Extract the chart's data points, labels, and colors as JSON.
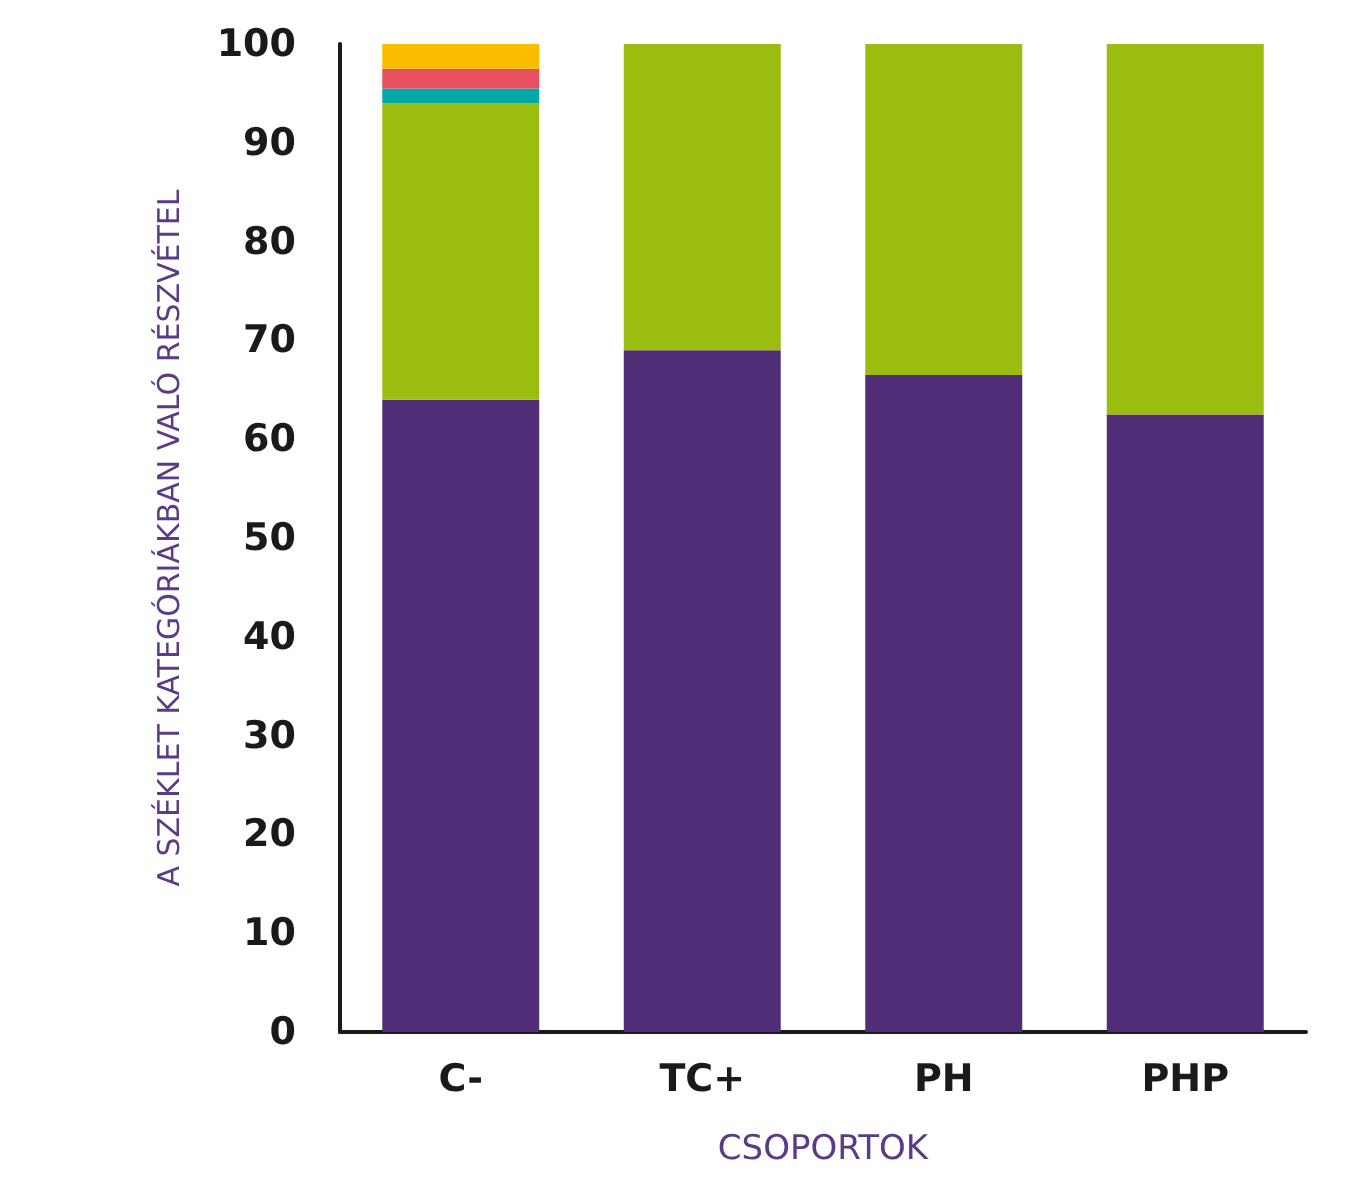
{
  "chart_data": {
    "type": "bar",
    "stacked": true,
    "xlabel": "CSOPORTOK",
    "ylabel": "A SZÉKLET KATEGÓRIÁKBAN VALÓ RÉSZVÉTEL",
    "categories": [
      "C-",
      "TC+",
      "PH",
      "PHP"
    ],
    "series": [
      {
        "color": "#512d78",
        "values": [
          64,
          69,
          66.5,
          62.5
        ]
      },
      {
        "color": "#9bbd0f",
        "values": [
          30,
          31,
          33.5,
          37.5
        ]
      },
      {
        "color": "#00a9a6",
        "values": [
          1.5,
          null,
          null,
          null
        ]
      },
      {
        "color": "#e85060",
        "values": [
          2,
          null,
          null,
          null
        ]
      },
      {
        "color": "#fbbc00",
        "values": [
          2.5,
          null,
          null,
          null
        ]
      }
    ],
    "ylim": [
      0,
      100
    ],
    "yticks": [
      0,
      10,
      20,
      30,
      40,
      50,
      60,
      70,
      80,
      90,
      100
    ],
    "grid": false
  }
}
